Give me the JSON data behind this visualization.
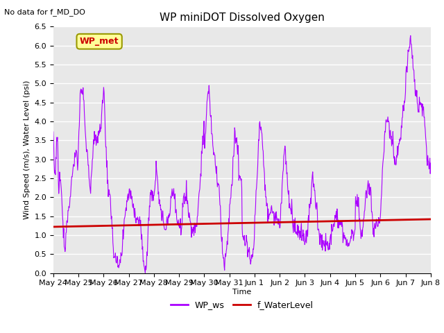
{
  "title": "WP miniDOT Dissolved Oxygen",
  "top_left_text": "No data for f_MD_DO",
  "ylabel": "Wind Speed (m/s), Water Level (psi)",
  "xlabel": "Time",
  "ylim": [
    0.0,
    6.5
  ],
  "yticks": [
    0.0,
    0.5,
    1.0,
    1.5,
    2.0,
    2.5,
    3.0,
    3.5,
    4.0,
    4.5,
    5.0,
    5.5,
    6.0,
    6.5
  ],
  "x_tick_labels": [
    "May 24",
    "May 25",
    "May 26",
    "May 27",
    "May 28",
    "May 29",
    "May 30",
    "May 31",
    "Jun 1",
    "Jun 2",
    "Jun 3",
    "Jun 4",
    "Jun 5",
    "Jun 6",
    "Jun 7",
    "Jun 8"
  ],
  "wp_ws_color": "#AA00FF",
  "f_waterlevel_color": "#CC0000",
  "legend_entries": [
    "WP_ws",
    "f_WaterLevel"
  ],
  "annotation_box_text": "WP_met",
  "annotation_box_facecolor": "#FFFF99",
  "annotation_box_edgecolor": "#999900",
  "annotation_box_textcolor": "#CC0000",
  "background_color": "#E8E8E8",
  "grid_color": "#FFFFFF",
  "title_fontsize": 11,
  "label_fontsize": 8,
  "tick_fontsize": 8,
  "legend_fontsize": 9
}
